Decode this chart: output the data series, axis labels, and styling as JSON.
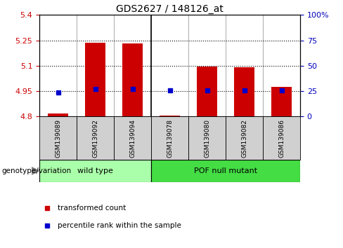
{
  "title": "GDS2627 / 148126_at",
  "samples": [
    "GSM139089",
    "GSM139092",
    "GSM139094",
    "GSM139078",
    "GSM139080",
    "GSM139082",
    "GSM139086"
  ],
  "bar_bottom": 4.8,
  "bar_tops": [
    4.82,
    5.235,
    5.23,
    4.805,
    5.095,
    5.09,
    4.975
  ],
  "blue_dots": [
    4.942,
    4.963,
    4.963,
    4.955,
    4.953,
    4.953,
    4.953
  ],
  "ylim": [
    4.8,
    5.4
  ],
  "yticks_left": [
    4.8,
    4.95,
    5.1,
    5.25,
    5.4
  ],
  "ytick_left_labels": [
    "4.8",
    "4.95",
    "5.1",
    "5.25",
    "5.4"
  ],
  "yticks_right_pct": [
    0,
    25,
    50,
    75,
    100
  ],
  "ytick_right_labels": [
    "0",
    "25",
    "50",
    "75",
    "100%"
  ],
  "dotted_lines": [
    4.95,
    5.1,
    5.25
  ],
  "wt_count": 3,
  "pof_count": 4,
  "wt_label": "wild type",
  "pof_label": "POF null mutant",
  "wt_color": "#aaffaa",
  "pof_color": "#44dd44",
  "bar_color": "#cc0000",
  "dot_color": "#0000cc",
  "left_label_color": "#cc0000",
  "right_label_color": "#0000bb",
  "tick_bg_color": "#d0d0d0",
  "legend_red_label": "transformed count",
  "legend_blue_label": "percentile rank within the sample",
  "genotype_label": "genotype/variation",
  "title_fontsize": 10,
  "tick_fontsize": 8,
  "bar_width": 0.55
}
